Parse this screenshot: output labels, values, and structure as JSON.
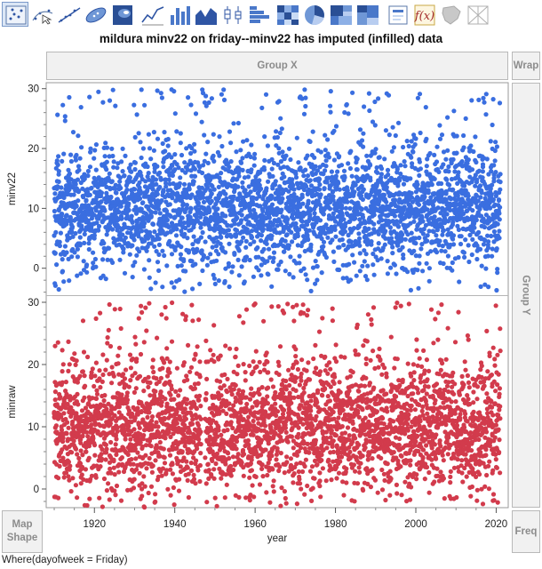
{
  "toolbar": {
    "icons": [
      {
        "name": "points-icon",
        "active": true
      },
      {
        "name": "smoother-icon",
        "active": false
      },
      {
        "name": "line-of-fit-icon",
        "active": false
      },
      {
        "name": "ellipse-icon",
        "active": false
      },
      {
        "name": "contour-icon",
        "active": false
      },
      {
        "name": "line-icon",
        "active": false
      },
      {
        "name": "bar-icon",
        "active": false
      },
      {
        "name": "area-icon",
        "active": false
      },
      {
        "name": "box-plot-icon",
        "active": false
      },
      {
        "name": "histogram-icon",
        "active": false
      },
      {
        "name": "heatmap-icon",
        "active": false
      },
      {
        "name": "pie-icon",
        "active": false
      },
      {
        "name": "treemap-icon",
        "active": false
      },
      {
        "name": "mosaic-icon",
        "active": false
      },
      {
        "name": "caption-box-icon",
        "active": false
      },
      {
        "name": "formula-icon",
        "active": false
      },
      {
        "name": "map-shapes-icon",
        "active": false
      },
      {
        "name": "parallel-icon",
        "active": false
      }
    ]
  },
  "title": "mildura minv22 on friday--minv22 has imputed (infilled) data",
  "zones": {
    "group_x": "Group X",
    "wrap": "Wrap",
    "group_y": "Group Y",
    "map_shape_line1": "Map",
    "map_shape_line2": "Shape",
    "freq": "Freq"
  },
  "where": "Where(dayofweek = Friday)",
  "colors": {
    "top_series": "#3a6ee0",
    "bottom_series": "#d23b4c"
  },
  "chart_data": {
    "type": "scatter",
    "xlabel": "year",
    "x_ticks": [
      1920,
      1940,
      1960,
      1980,
      2000,
      2020
    ],
    "xlim": [
      1908,
      2023
    ],
    "panels": [
      {
        "ylabel": "minv22",
        "y_ticks": [
          0,
          10,
          20,
          30
        ],
        "ylim": [
          -4.5,
          31
        ],
        "series": [
          {
            "color": "#3a6ee0",
            "year_range": [
              1910,
              2021
            ],
            "gaps": [],
            "center": 10,
            "spread": 7,
            "min": -4,
            "max": 30
          }
        ]
      },
      {
        "ylabel": "minraw",
        "y_ticks": [
          0,
          10,
          20,
          30
        ],
        "ylim": [
          -3,
          31
        ],
        "series": [
          {
            "color": "#d23b4c",
            "year_range": [
              1910,
              2021
            ],
            "gaps": [
              [
                1946.5,
                1947.5
              ]
            ],
            "center": 10,
            "spread": 7,
            "min": -3,
            "max": 30
          }
        ]
      }
    ]
  }
}
